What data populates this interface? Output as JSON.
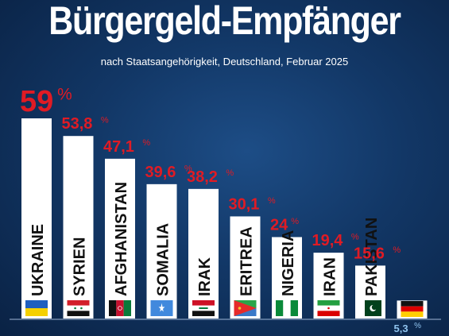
{
  "title": "Bürgergeld-Empfänger",
  "subtitle": "nach Staatsangehörigkeit, Deutschland, Februar 2025",
  "colors": {
    "bar": "#ffffff",
    "value": "#e01b24",
    "last_value": "#8fc3ee",
    "background": "#133a6b"
  },
  "chart_data": {
    "type": "bar",
    "title": "Bürgergeld-Empfänger",
    "subtitle": "nach Staatsangehörigkeit, Deutschland, Februar 2025",
    "xlabel": "",
    "ylabel": "",
    "ylim": [
      0,
      60
    ],
    "grid": false,
    "legend": "none",
    "categories": [
      "UKRAINE",
      "SYRIEN",
      "AFGHANISTAN",
      "SOMALIA",
      "IRAK",
      "ERITREA",
      "NIGERIA",
      "IRAN",
      "PAKISTAN",
      ""
    ],
    "values": [
      59,
      53.8,
      47.1,
      39.6,
      38.2,
      30.1,
      24,
      19.4,
      15.6,
      5.3
    ],
    "value_labels": [
      "59",
      "53,8",
      "47,1",
      "39,6",
      "38,2",
      "30,1",
      "24",
      "19,4",
      "15,6",
      "5,3"
    ],
    "unit": "%",
    "flags": [
      "ukraine-flag",
      "syria-flag",
      "afghanistan-flag",
      "somalia-flag",
      "iraq-flag",
      "eritrea-flag",
      "nigeria-flag",
      "iran-flag",
      "pakistan-flag",
      "germany-flag"
    ]
  }
}
